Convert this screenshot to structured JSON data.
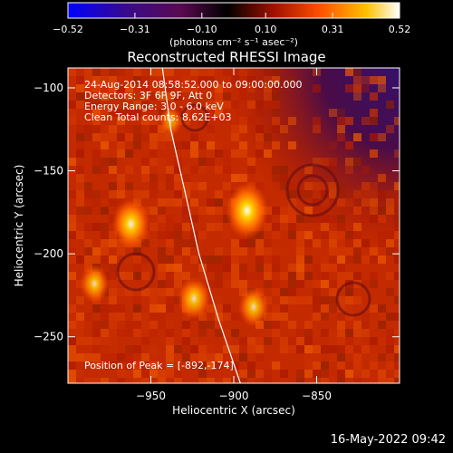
{
  "chart_data": {
    "type": "heatmap",
    "title": "Reconstructed RHESSI Image",
    "xlabel": "Heliocentric X (arcsec)",
    "ylabel": "Heliocentric Y (arcsec)",
    "xlim": [
      -1000,
      -800
    ],
    "ylim": [
      -278,
      -88
    ],
    "x_ticks": [
      -950,
      -900,
      -850
    ],
    "y_ticks": [
      -100,
      -150,
      -200,
      -250
    ],
    "x_tick_labels": [
      "−950",
      "−900",
      "−850"
    ],
    "y_tick_labels": [
      "−100",
      "−150",
      "−200",
      "−250"
    ],
    "colorbar": {
      "range": [
        -0.52,
        0.52
      ],
      "ticks": [
        -0.52,
        -0.31,
        -0.1,
        0.1,
        0.31,
        0.52
      ],
      "tick_labels": [
        "−0.52",
        "−0.31",
        "−0.10",
        "0.10",
        "0.31",
        "0.52"
      ],
      "unit_label": "(photons cm⁻² s⁻¹ asec⁻²)",
      "colormap": [
        "#0000ff",
        "#3a0a8a",
        "#5a0a50",
        "#000000",
        "#a01000",
        "#ff5000",
        "#ffc000",
        "#ffffff"
      ]
    },
    "annotations": [
      "24-Aug-2014 08:58:52.000 to 09:00:00.000",
      "Detectors: 3F 6F 9F, Att 0",
      "Energy Range: 3.0 - 6.0 keV",
      "Clean     Total counts: 8.62E+03",
      "Position of Peak = [-892,-174]"
    ],
    "sources": [
      {
        "x": -892,
        "y": -174,
        "value": 0.52
      },
      {
        "x": -962,
        "y": -182,
        "value": 0.44
      },
      {
        "x": -984,
        "y": -218,
        "value": 0.28
      },
      {
        "x": -924,
        "y": -227,
        "value": 0.34
      },
      {
        "x": -888,
        "y": -232,
        "value": 0.3
      },
      {
        "x": -938,
        "y": -120,
        "value": 0.16
      }
    ],
    "limb": [
      [
        -943,
        -88
      ],
      [
        -938,
        -125
      ],
      [
        -930,
        -160
      ],
      [
        -921,
        -200
      ],
      [
        -909,
        -240
      ],
      [
        -896,
        -278
      ]
    ],
    "negative_region_corner": "top-right"
  },
  "timestamp": "16-May-2022 09:42"
}
